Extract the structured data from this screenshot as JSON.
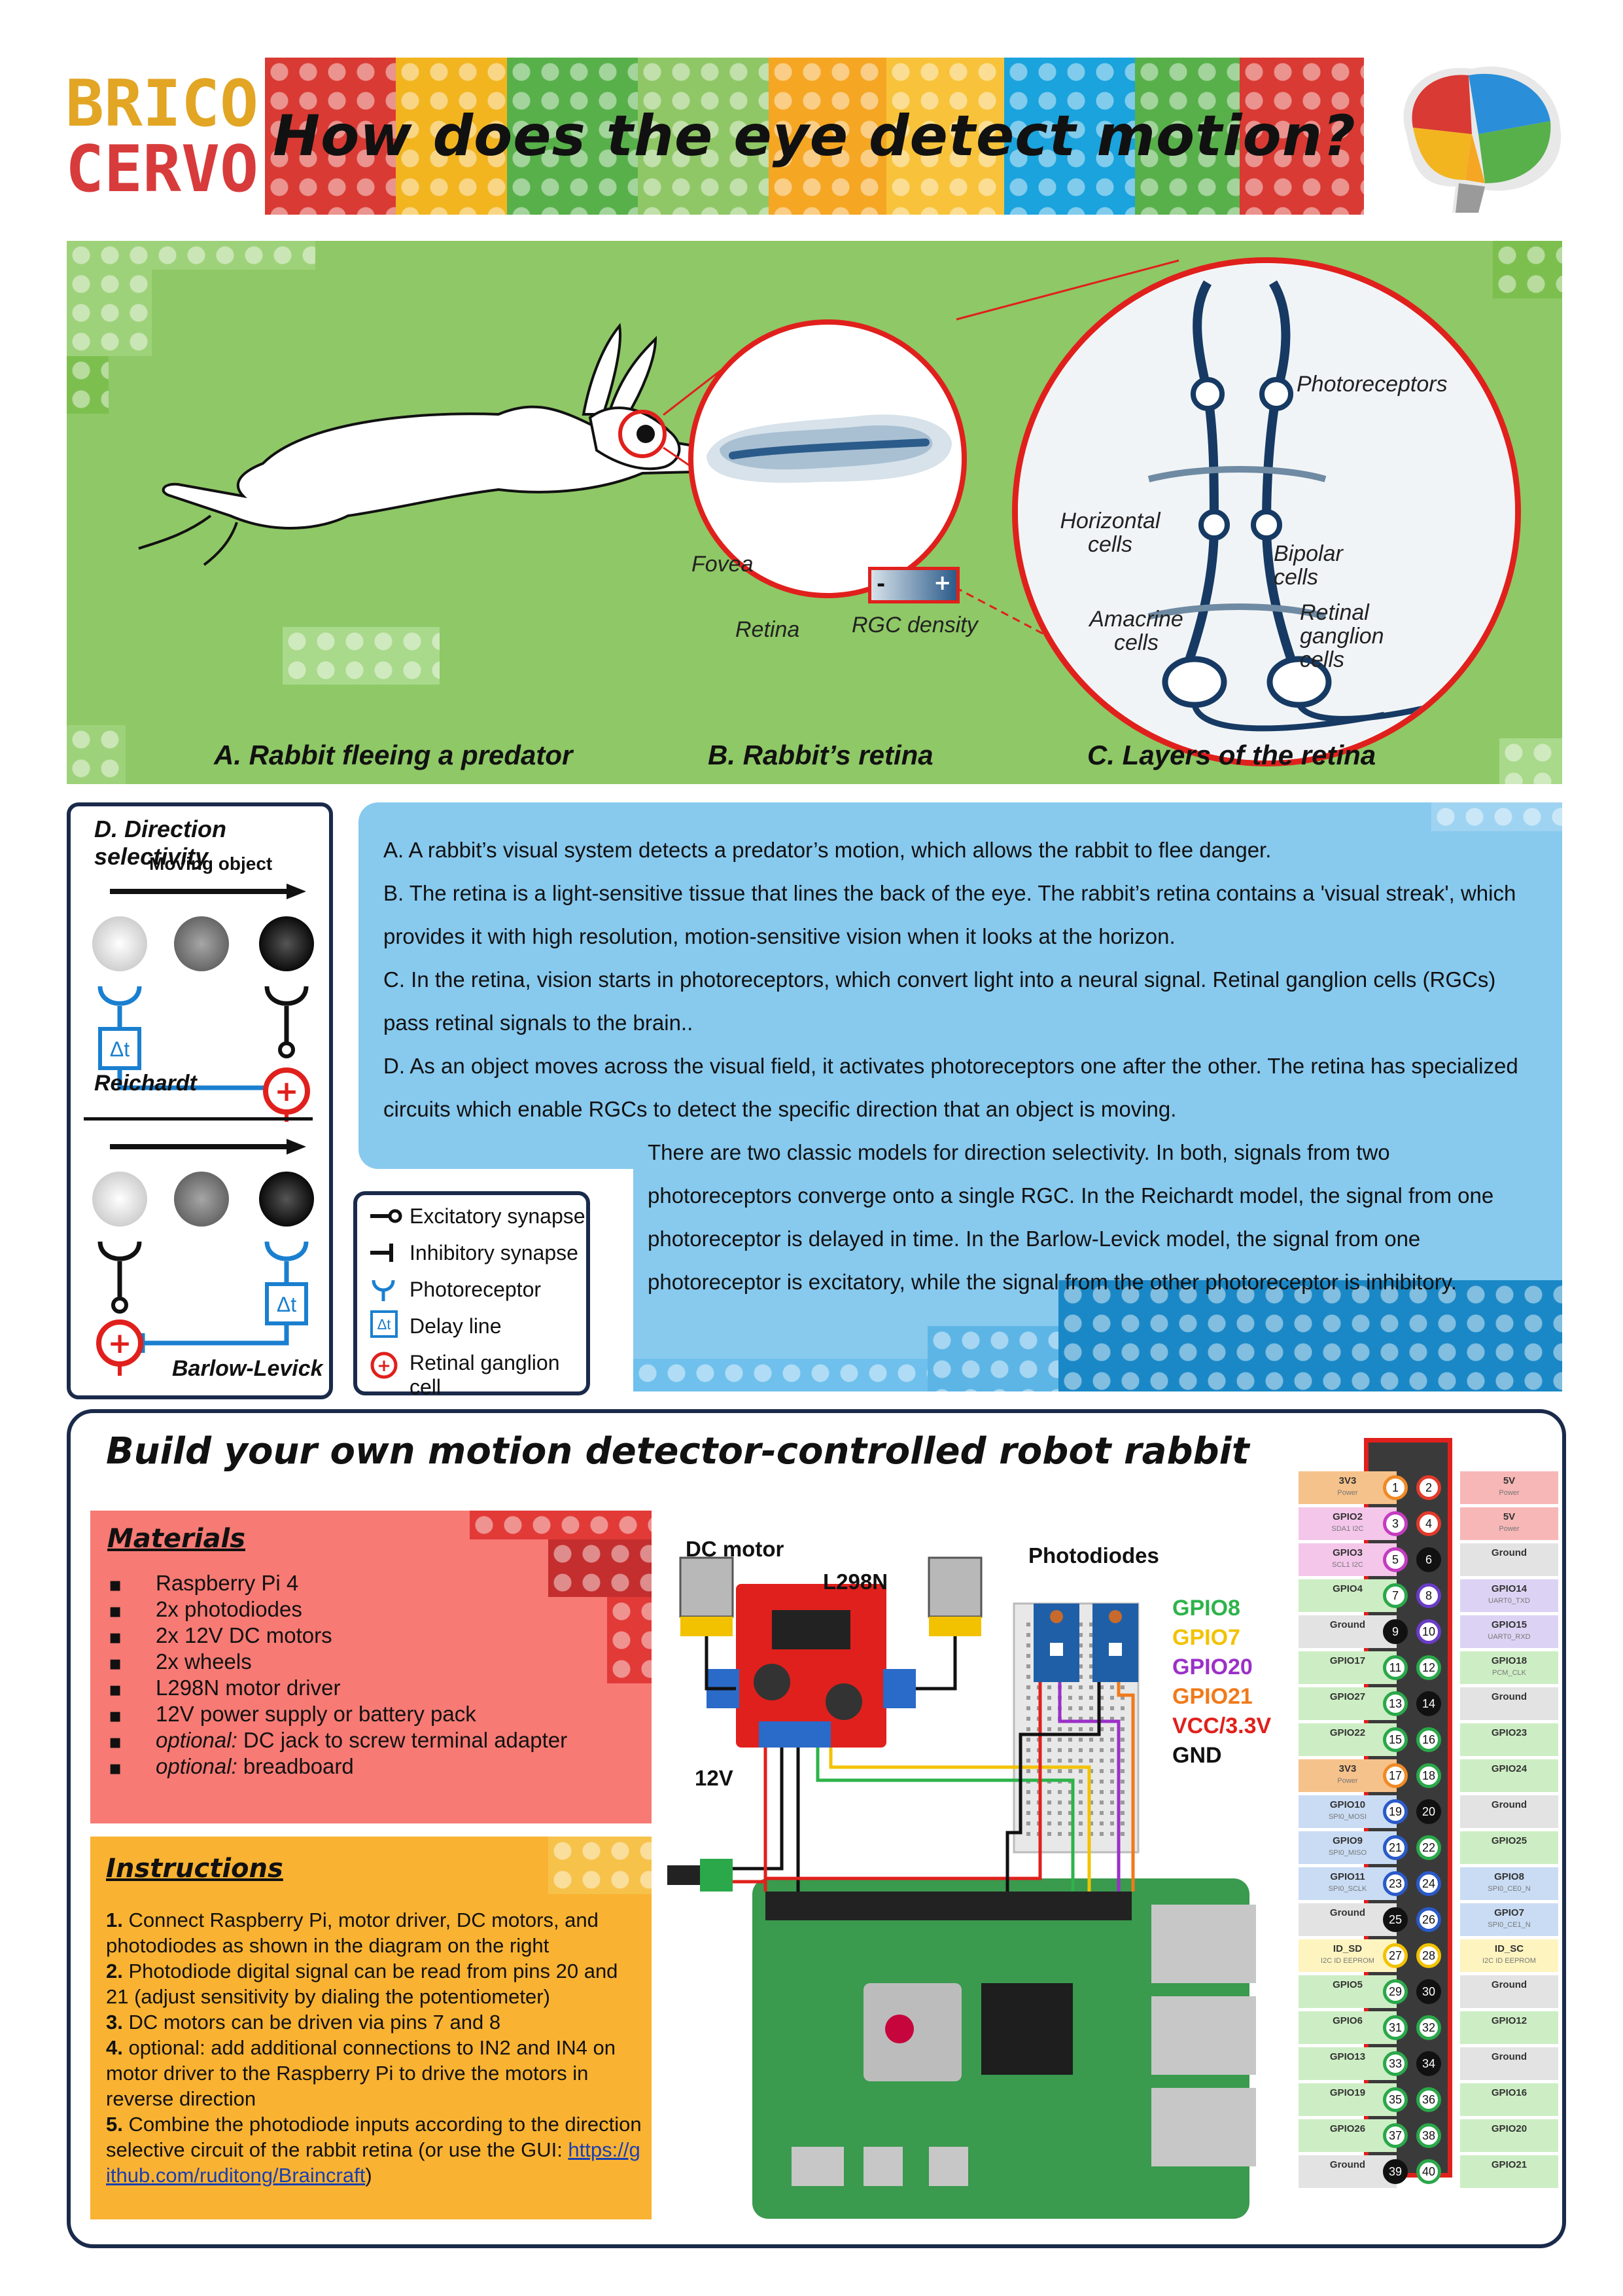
{
  "logo": {
    "line1": "BRICO",
    "line2": "CERVO"
  },
  "title": "How does the eye detect motion?",
  "panel_top": {
    "caption_a": "A. Rabbit fleeing a predator",
    "caption_b": "B. Rabbit’s retina",
    "caption_c": "C. Layers of the retina",
    "fovea": "Fovea",
    "retina": "Retina",
    "rgc_density": "RGC density",
    "density_minus": "-",
    "density_plus": "+",
    "photoreceptors": "Photoreceptors",
    "horizontal_cells": "Horizontal cells",
    "bipolar_cells": "Bipolar cells",
    "amacrine_cells": "Amacrine cells",
    "retinal_ganglion_cells": "Retinal ganglion cells"
  },
  "direction": {
    "title": "D. Direction selectivity",
    "moving_object": "Moving object",
    "delay": "Δt",
    "reichardt": "Reichardt",
    "barlow": "Barlow-Levick"
  },
  "legend": [
    {
      "label": "Excitatory synapse"
    },
    {
      "label": "Inhibitory synapse"
    },
    {
      "label": "Photoreceptor"
    },
    {
      "label": "Delay line",
      "symbol": "Δt"
    },
    {
      "label": "Retinal ganglion cell"
    }
  ],
  "explanation": {
    "a": "A. A rabbit’s visual system detects a predator’s motion, which allows the rabbit to flee danger.",
    "b1": "B. The retina is a light-sensitive tissue that lines the back of the eye. The rabbit’s retina contains a 'visual streak', which",
    "b2": "provides it with high resolution, motion-sensitive vision when it looks at the horizon.",
    "c1": "C. In the retina, vision starts in photoreceptors, which convert light into a neural signal. Retinal ganglion cells (RGCs)",
    "c2": "pass retinal signals to the brain..",
    "d1": "D. As an object moves across the visual field, it activates photoreceptors one after the other. The retina has specialized",
    "d2": "circuits which enable RGCs to detect the specific direction that an object is moving.",
    "e1": "There are two classic models for direction selectivity. In both, signals from two",
    "e2": "photoreceptors converge onto a single RGC. In the Reichardt model, the signal from one",
    "e3": "photoreceptor is delayed in time. In the Barlow-Levick model, the signal from one",
    "e4": "photoreceptor is excitatory, while the signal from the other photoreceptor is inhibitory."
  },
  "build": {
    "title": "Build your own motion detector-controlled robot rabbit",
    "materials_title": "Materials",
    "materials": [
      {
        "text": "Raspberry Pi 4"
      },
      {
        "text": "2x photodiodes"
      },
      {
        "text": "2x 12V DC motors"
      },
      {
        "text": "2x wheels"
      },
      {
        "text": "L298N motor driver"
      },
      {
        "text": "12V power supply or battery pack"
      },
      {
        "prefix": "optional:",
        "text": " DC jack to screw terminal adapter"
      },
      {
        "prefix": "optional:",
        "text": " breadboard"
      }
    ],
    "instructions_title": "Instructions",
    "instructions": [
      {
        "num": "1.",
        "text": " Connect Raspberry Pi, motor driver, DC motors, and photodiodes as shown in the diagram on the right"
      },
      {
        "num": "2.",
        "text": " Photodiode digital signal can be read from pins 20 and 21 (adjust sensitivity by dialing the potentiometer)"
      },
      {
        "num": "3.",
        "text": " DC motors can be driven via pins 7 and 8"
      },
      {
        "num": "4.",
        "text": " optional: add additional connections to IN2 and IN4 on motor driver to the Raspberry Pi to drive the motors in reverse direction"
      },
      {
        "num": "5.",
        "text": " Combine the photodiode inputs according to the direction selective circuit of the rabbit retina (or use the GUI: "
      }
    ],
    "gui_link": "https://github.com/ruditong/Braincraft",
    "gui_link_close": ")"
  },
  "wiring": {
    "dc_motor": "DC motor",
    "l298n": "L298N",
    "photodiodes": "Photodiodes",
    "power": "12V",
    "signals": [
      {
        "label": "GPIO8",
        "color": "#2db34a"
      },
      {
        "label": "GPIO7",
        "color": "#f2c200"
      },
      {
        "label": "GPIO20",
        "color": "#9b30c8"
      },
      {
        "label": "GPIO21",
        "color": "#f07a1a"
      },
      {
        "label": "VCC/3.3V",
        "color": "#e0201c"
      },
      {
        "label": "GND",
        "color": "#111111"
      }
    ]
  },
  "pinout": [
    {
      "l": "3V3",
      "ls": "Power",
      "lc": "#f6c28b",
      "n1": "1",
      "c1": "#f08a24",
      "n2": "2",
      "c2": "#e23a2a",
      "r": "5V",
      "rs": "Power",
      "rc": "#f7b7b7"
    },
    {
      "l": "GPIO2",
      "ls": "SDA1 I2C",
      "lc": "#f4c6ea",
      "n1": "3",
      "c1": "#c43cc0",
      "n2": "4",
      "c2": "#e23a2a",
      "r": "5V",
      "rs": "Power",
      "rc": "#f7b7b7"
    },
    {
      "l": "GPIO3",
      "ls": "SCL1 I2C",
      "lc": "#f4c6ea",
      "n1": "5",
      "c1": "#c43cc0",
      "n2": "6",
      "c2": "#111111",
      "r": "Ground",
      "rs": "",
      "rc": "#e3e3e3"
    },
    {
      "l": "GPIO4",
      "ls": "",
      "lc": "#cdeec4",
      "n1": "7",
      "c1": "#2aa84a",
      "n2": "8",
      "c2": "#6a3cc8",
      "r": "GPIO14",
      "rs": "UART0_TXD",
      "rc": "#dcd3f4"
    },
    {
      "l": "Ground",
      "ls": "",
      "lc": "#e3e3e3",
      "n1": "9",
      "c1": "#111111",
      "n2": "10",
      "c2": "#6a3cc8",
      "r": "GPIO15",
      "rs": "UART0_RXD",
      "rc": "#dcd3f4"
    },
    {
      "l": "GPIO17",
      "ls": "",
      "lc": "#cdeec4",
      "n1": "11",
      "c1": "#2aa84a",
      "n2": "12",
      "c2": "#2aa84a",
      "r": "GPIO18",
      "rs": "PCM_CLK",
      "rc": "#cdeec4"
    },
    {
      "l": "GPIO27",
      "ls": "",
      "lc": "#cdeec4",
      "n1": "13",
      "c1": "#2aa84a",
      "n2": "14",
      "c2": "#111111",
      "r": "Ground",
      "rs": "",
      "rc": "#e3e3e3"
    },
    {
      "l": "GPIO22",
      "ls": "",
      "lc": "#cdeec4",
      "n1": "15",
      "c1": "#2aa84a",
      "n2": "16",
      "c2": "#2aa84a",
      "r": "GPIO23",
      "rs": "",
      "rc": "#cdeec4"
    },
    {
      "l": "3V3",
      "ls": "Power",
      "lc": "#f6c28b",
      "n1": "17",
      "c1": "#f08a24",
      "n2": "18",
      "c2": "#2aa84a",
      "r": "GPIO24",
      "rs": "",
      "rc": "#cdeec4"
    },
    {
      "l": "GPIO10",
      "ls": "SPI0_MOSI",
      "lc": "#c9dcf4",
      "n1": "19",
      "c1": "#2a5ac8",
      "n2": "20",
      "c2": "#111111",
      "r": "Ground",
      "rs": "",
      "rc": "#e3e3e3"
    },
    {
      "l": "GPIO9",
      "ls": "SPI0_MISO",
      "lc": "#c9dcf4",
      "n1": "21",
      "c1": "#2a5ac8",
      "n2": "22",
      "c2": "#2aa84a",
      "r": "GPIO25",
      "rs": "",
      "rc": "#cdeec4"
    },
    {
      "l": "GPIO11",
      "ls": "SPI0_SCLK",
      "lc": "#c9dcf4",
      "n1": "23",
      "c1": "#2a5ac8",
      "n2": "24",
      "c2": "#2a5ac8",
      "r": "GPIO8",
      "rs": "SPI0_CE0_N",
      "rc": "#c9dcf4"
    },
    {
      "l": "Ground",
      "ls": "",
      "lc": "#e3e3e3",
      "n1": "25",
      "c1": "#111111",
      "n2": "26",
      "c2": "#2a5ac8",
      "r": "GPIO7",
      "rs": "SPI0_CE1_N",
      "rc": "#c9dcf4"
    },
    {
      "l": "ID_SD",
      "ls": "I2C ID EEPROM",
      "lc": "#fdf4c0",
      "n1": "27",
      "c1": "#f2c200",
      "n2": "28",
      "c2": "#f2c200",
      "r": "ID_SC",
      "rs": "I2C ID EEPROM",
      "rc": "#fdf4c0"
    },
    {
      "l": "GPIO5",
      "ls": "",
      "lc": "#cdeec4",
      "n1": "29",
      "c1": "#2aa84a",
      "n2": "30",
      "c2": "#111111",
      "r": "Ground",
      "rs": "",
      "rc": "#e3e3e3"
    },
    {
      "l": "GPIO6",
      "ls": "",
      "lc": "#cdeec4",
      "n1": "31",
      "c1": "#2aa84a",
      "n2": "32",
      "c2": "#2aa84a",
      "r": "GPIO12",
      "rs": "",
      "rc": "#cdeec4"
    },
    {
      "l": "GPIO13",
      "ls": "",
      "lc": "#cdeec4",
      "n1": "33",
      "c1": "#2aa84a",
      "n2": "34",
      "c2": "#111111",
      "r": "Ground",
      "rs": "",
      "rc": "#e3e3e3"
    },
    {
      "l": "GPIO19",
      "ls": "",
      "lc": "#cdeec4",
      "n1": "35",
      "c1": "#2aa84a",
      "n2": "36",
      "c2": "#2aa84a",
      "r": "GPIO16",
      "rs": "",
      "rc": "#cdeec4"
    },
    {
      "l": "GPIO26",
      "ls": "",
      "lc": "#cdeec4",
      "n1": "37",
      "c1": "#2aa84a",
      "n2": "38",
      "c2": "#2aa84a",
      "r": "GPIO20",
      "rs": "",
      "rc": "#cdeec4"
    },
    {
      "l": "Ground",
      "ls": "",
      "lc": "#e3e3e3",
      "n1": "39",
      "c1": "#111111",
      "n2": "40",
      "c2": "#2aa84a",
      "r": "GPIO21",
      "rs": "",
      "rc": "#cdeec4"
    }
  ]
}
